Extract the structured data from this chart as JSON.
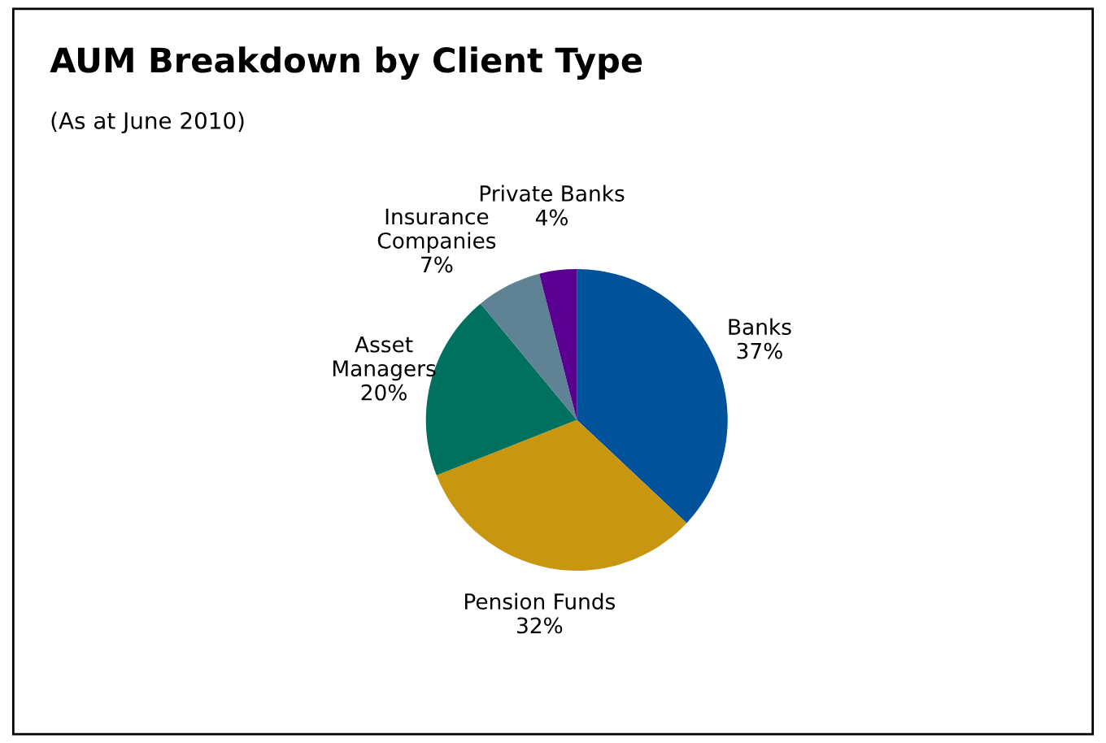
{
  "chart_data": {
    "type": "pie",
    "title": "AUM Breakdown by Client Type",
    "subtitle": "(As at June 2010)",
    "categories": [
      "Banks",
      "Pension Funds",
      "Asset Managers",
      "Insurance Companies",
      "Private Banks"
    ],
    "values": [
      37,
      32,
      20,
      7,
      4
    ],
    "colors": [
      "#00529b",
      "#c8960f",
      "#00715e",
      "#5f8394",
      "#5a0091"
    ],
    "value_labels": [
      "37%",
      "32%",
      "20%",
      "7%",
      "4%"
    ],
    "legend": false
  }
}
